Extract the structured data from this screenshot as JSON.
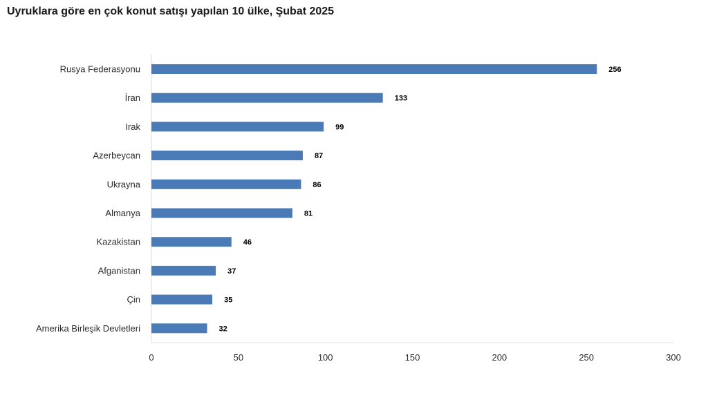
{
  "chart_data": {
    "type": "bar",
    "orientation": "horizontal",
    "title": "Uyruklara göre en çok konut satışı yapılan 10 ülke, Şubat 2025",
    "categories": [
      "Rusya Federasyonu",
      "İran",
      "Irak",
      "Azerbeycan",
      "Ukrayna",
      "Almanya",
      "Kazakistan",
      "Afganistan",
      "Çin",
      "Amerika Birleşik Devletleri"
    ],
    "values": [
      256,
      133,
      99,
      87,
      86,
      81,
      46,
      37,
      35,
      32
    ],
    "xlim": [
      0,
      300
    ],
    "xticks": [
      "0",
      "50",
      "100",
      "150",
      "200",
      "250",
      "300"
    ],
    "bar_color": "#4a7bb7",
    "grid": false,
    "data_labels": true
  }
}
